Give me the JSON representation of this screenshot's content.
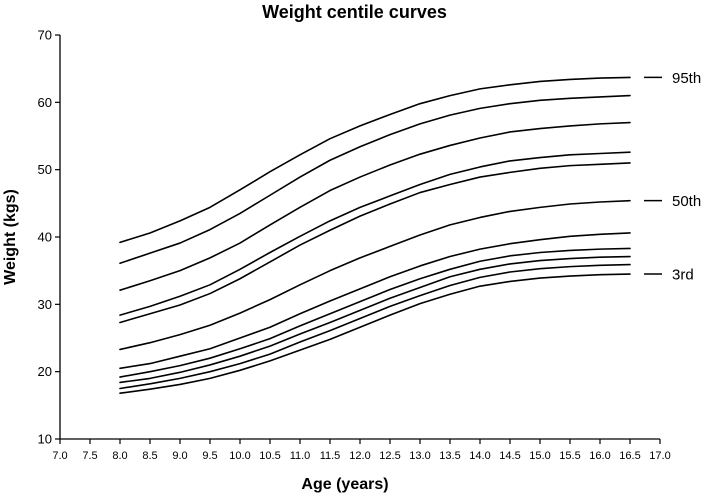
{
  "chart_data": {
    "type": "line",
    "title": "Weight centile curves",
    "xlabel": "Age (years)",
    "ylabel": "Weight (kgs)",
    "xlim": [
      7.0,
      17.0
    ],
    "ylim": [
      10,
      70
    ],
    "x_ticks": [
      "7.0",
      "7.5",
      "8.0",
      "8.5",
      "9.0",
      "9.5",
      "10.0",
      "10.5",
      "11.0",
      "11.5",
      "12.0",
      "12.5",
      "13.0",
      "13.5",
      "14.0",
      "14.5",
      "15.0",
      "15.5",
      "16.0",
      "16.5",
      "17.0"
    ],
    "y_ticks": [
      "10",
      "20",
      "30",
      "40",
      "50",
      "60",
      "70"
    ],
    "grid": false,
    "legend": "none",
    "line_color": "#000000",
    "x": [
      8.0,
      8.5,
      9.0,
      9.5,
      10.0,
      10.5,
      11.0,
      11.5,
      12.0,
      12.5,
      13.0,
      13.5,
      14.0,
      14.5,
      15.0,
      15.5,
      16.0,
      16.5
    ],
    "series": [
      {
        "name": "95th",
        "values": [
          39.2,
          40.6,
          42.4,
          44.4,
          47.0,
          49.7,
          52.2,
          54.6,
          56.5,
          58.2,
          59.8,
          61.0,
          62.0,
          62.6,
          63.1,
          63.4,
          63.6,
          63.7
        ]
      },
      {
        "values": [
          36.1,
          37.6,
          39.1,
          41.1,
          43.5,
          46.2,
          48.9,
          51.4,
          53.4,
          55.2,
          56.8,
          58.1,
          59.1,
          59.8,
          60.3,
          60.6,
          60.8,
          61.0
        ]
      },
      {
        "values": [
          32.1,
          33.5,
          35.0,
          36.9,
          39.1,
          41.8,
          44.4,
          46.9,
          48.9,
          50.7,
          52.3,
          53.6,
          54.7,
          55.6,
          56.1,
          56.5,
          56.8,
          57.0
        ]
      },
      {
        "values": [
          28.4,
          29.7,
          31.2,
          32.9,
          35.2,
          37.7,
          40.1,
          42.4,
          44.4,
          46.1,
          47.8,
          49.3,
          50.4,
          51.3,
          51.8,
          52.2,
          52.4,
          52.6
        ]
      },
      {
        "values": [
          27.3,
          28.6,
          29.9,
          31.6,
          33.8,
          36.3,
          38.8,
          41.0,
          43.1,
          44.9,
          46.6,
          47.8,
          48.9,
          49.6,
          50.2,
          50.6,
          50.8,
          51.0
        ]
      },
      {
        "name": "50th",
        "values": [
          23.3,
          24.3,
          25.5,
          26.9,
          28.7,
          30.7,
          32.9,
          35.0,
          36.9,
          38.6,
          40.3,
          41.8,
          42.9,
          43.8,
          44.4,
          44.9,
          45.2,
          45.4
        ]
      },
      {
        "values": [
          20.5,
          21.2,
          22.3,
          23.4,
          25.0,
          26.6,
          28.6,
          30.5,
          32.3,
          34.1,
          35.7,
          37.1,
          38.2,
          39.0,
          39.6,
          40.1,
          40.4,
          40.6
        ]
      },
      {
        "values": [
          19.2,
          20.0,
          20.9,
          22.0,
          23.4,
          24.9,
          26.8,
          28.6,
          30.4,
          32.2,
          33.8,
          35.2,
          36.4,
          37.2,
          37.7,
          38.0,
          38.2,
          38.3
        ]
      },
      {
        "values": [
          18.4,
          19.0,
          19.9,
          21.0,
          22.3,
          23.8,
          25.6,
          27.3,
          29.1,
          30.9,
          32.5,
          34.1,
          35.2,
          36.0,
          36.5,
          36.8,
          37.0,
          37.1
        ]
      },
      {
        "values": [
          17.5,
          18.2,
          19.0,
          20.0,
          21.2,
          22.6,
          24.4,
          26.1,
          27.9,
          29.7,
          31.3,
          32.8,
          34.0,
          34.8,
          35.3,
          35.6,
          35.8,
          35.9
        ]
      },
      {
        "name": "3rd",
        "values": [
          16.8,
          17.4,
          18.1,
          19.0,
          20.2,
          21.6,
          23.2,
          24.8,
          26.6,
          28.4,
          30.1,
          31.5,
          32.7,
          33.4,
          33.9,
          34.2,
          34.4,
          34.5
        ]
      }
    ]
  }
}
